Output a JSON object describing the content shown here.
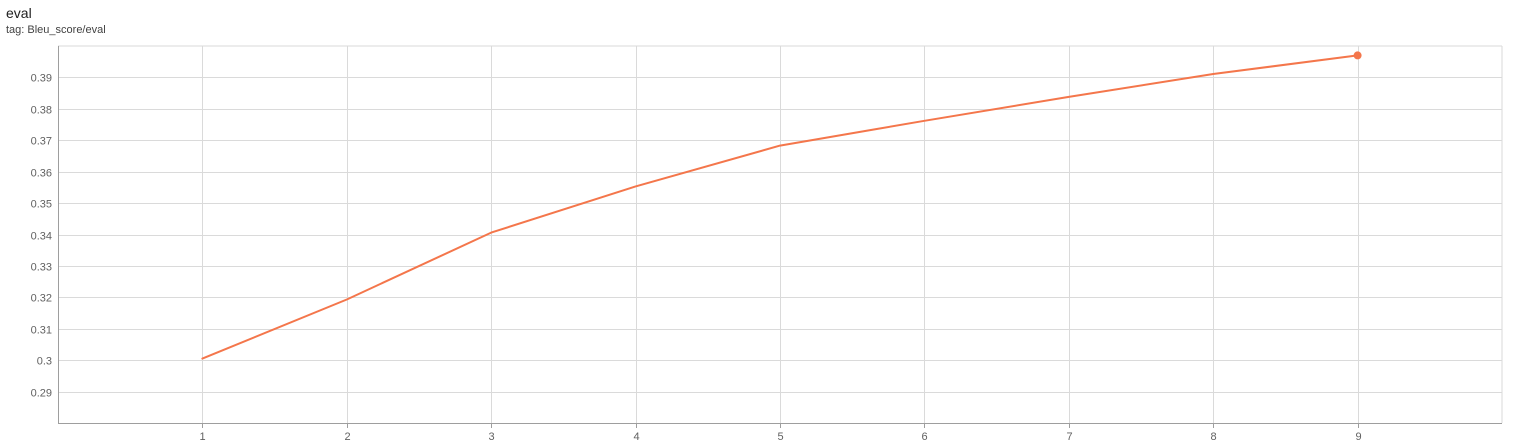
{
  "header": {
    "title": "eval",
    "tag": "tag: Bleu_score/eval"
  },
  "colors": {
    "series": "#f4764b",
    "grid": "#dadada",
    "axis": "#9e9e9e"
  },
  "chart_data": {
    "type": "line",
    "x": [
      1,
      2,
      3,
      4,
      5,
      6,
      7,
      8,
      9
    ],
    "series": [
      {
        "values": [
          0.3005,
          0.3193,
          0.3406,
          0.3553,
          0.3683,
          0.3762,
          0.3838,
          0.3911,
          0.397
        ]
      }
    ],
    "xlim": [
      0,
      10
    ],
    "ylim": [
      0.28,
      0.4
    ],
    "x_ticks": [
      1,
      2,
      3,
      4,
      5,
      6,
      7,
      8,
      9
    ],
    "y_ticks": [
      0.29,
      0.3,
      0.31,
      0.32,
      0.33,
      0.34,
      0.35,
      0.36,
      0.37,
      0.38,
      0.39
    ],
    "y_tick_labels": [
      "0.29",
      "0.3",
      "0.31",
      "0.32",
      "0.33",
      "0.34",
      "0.35",
      "0.36",
      "0.37",
      "0.38",
      "0.39"
    ],
    "grid": true,
    "legend": "none"
  }
}
